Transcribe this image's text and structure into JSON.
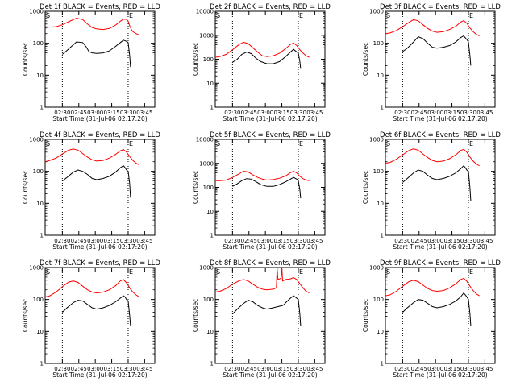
{
  "chart_data": [
    {
      "type": "line",
      "title": "Det 1f BLACK = Events, RED = LLD",
      "xlabel": "Start Time (31-Jul-06 02:17:20)",
      "ylabel": "Counts/sec",
      "x_ticks": [
        "02:30",
        "02:45",
        "03:00",
        "03:15",
        "03:30",
        "03:45"
      ],
      "y_ticks": [
        "1",
        "10",
        "100",
        "1000"
      ],
      "marker_start": "S",
      "marker_end": "E",
      "series": [
        {
          "name": "Events",
          "color": "#000000",
          "x": [
            22,
            28,
            40,
            48,
            52,
            56,
            60,
            66,
            74,
            82,
            90,
            96,
            100,
            104,
            106,
            108,
            109
          ],
          "y": [
            45,
            60,
            110,
            105,
            80,
            55,
            50,
            48,
            50,
            58,
            80,
            105,
            125,
            115,
            105,
            40,
            18
          ]
        },
        {
          "name": "LLD",
          "color": "#ff0000",
          "x": [
            0,
            6,
            14,
            22,
            30,
            40,
            48,
            54,
            60,
            66,
            74,
            82,
            90,
            96,
            100,
            104,
            106,
            108,
            110,
            112,
            116,
            120
          ],
          "y": [
            330,
            320,
            330,
            380,
            470,
            610,
            550,
            400,
            310,
            280,
            270,
            290,
            370,
            490,
            570,
            560,
            490,
            350,
            270,
            230,
            200,
            180
          ]
        }
      ]
    },
    {
      "type": "line",
      "title": "Det 2f BLACK = Events, RED = LLD",
      "xlabel": "Start Time (31-Jul-06 02:17:20)",
      "ylabel": "Counts/sec",
      "x_ticks": [
        "02:30",
        "02:45",
        "03:00",
        "03:15",
        "03:30",
        "03:45"
      ],
      "y_ticks": [
        "1",
        "10",
        "100",
        "1000",
        "10000"
      ],
      "marker_start": "S",
      "marker_end": "E",
      "series": [
        {
          "name": "Events",
          "color": "#000000",
          "x": [
            22,
            28,
            34,
            40,
            46,
            52,
            58,
            66,
            74,
            82,
            90,
            96,
            100,
            104,
            106,
            108,
            109
          ],
          "y": [
            75,
            100,
            160,
            200,
            170,
            110,
            80,
            65,
            65,
            80,
            130,
            200,
            260,
            200,
            180,
            80,
            40
          ]
        },
        {
          "name": "LLD",
          "color": "#ff0000",
          "x": [
            0,
            6,
            14,
            22,
            30,
            36,
            42,
            48,
            54,
            60,
            66,
            74,
            82,
            90,
            96,
            100,
            104,
            108,
            112,
            116,
            120
          ],
          "y": [
            120,
            130,
            160,
            250,
            400,
            510,
            450,
            300,
            200,
            140,
            130,
            140,
            180,
            280,
            420,
            470,
            380,
            250,
            180,
            140,
            120
          ]
        }
      ]
    },
    {
      "type": "line",
      "title": "Det 3f BLACK = Events, RED = LLD",
      "xlabel": "Start Time (31-Jul-06 02:17:20)",
      "ylabel": "Counts/sec",
      "x_ticks": [
        "02:30",
        "02:45",
        "03:00",
        "03:15",
        "03:30",
        "03:45"
      ],
      "y_ticks": [
        "1",
        "10",
        "100",
        "1000"
      ],
      "marker_start": "S",
      "marker_end": "E",
      "series": [
        {
          "name": "Events",
          "color": "#000000",
          "x": [
            22,
            28,
            36,
            42,
            48,
            54,
            60,
            66,
            74,
            82,
            90,
            96,
            100,
            104,
            106,
            108,
            109
          ],
          "y": [
            55,
            70,
            110,
            160,
            140,
            100,
            75,
            70,
            75,
            85,
            110,
            150,
            170,
            130,
            110,
            40,
            20
          ]
        },
        {
          "name": "LLD",
          "color": "#ff0000",
          "x": [
            0,
            6,
            14,
            22,
            30,
            36,
            42,
            48,
            54,
            60,
            66,
            74,
            82,
            90,
            96,
            100,
            104,
            108,
            112,
            116,
            120
          ],
          "y": [
            200,
            210,
            250,
            330,
            450,
            550,
            500,
            380,
            290,
            240,
            220,
            230,
            270,
            340,
            460,
            510,
            420,
            300,
            230,
            190,
            170
          ]
        }
      ]
    },
    {
      "type": "line",
      "title": "Det 4f BLACK = Events, RED = LLD",
      "xlabel": "Start Time (31-Jul-06 02:17:20)",
      "ylabel": "Counts/sec",
      "x_ticks": [
        "02:30",
        "02:45",
        "03:00",
        "03:15",
        "03:30",
        "03:45"
      ],
      "y_ticks": [
        "1",
        "10",
        "100",
        "1000"
      ],
      "marker_start": "S",
      "marker_end": "E",
      "series": [
        {
          "name": "Events",
          "color": "#000000",
          "x": [
            22,
            28,
            36,
            42,
            48,
            54,
            60,
            66,
            74,
            82,
            90,
            96,
            100,
            102,
            104,
            106,
            108,
            109
          ],
          "y": [
            50,
            65,
            95,
            110,
            100,
            80,
            60,
            55,
            60,
            70,
            95,
            130,
            150,
            130,
            110,
            100,
            40,
            15
          ]
        },
        {
          "name": "LLD",
          "color": "#ff0000",
          "x": [
            0,
            6,
            14,
            22,
            30,
            36,
            42,
            48,
            54,
            60,
            66,
            74,
            82,
            90,
            96,
            100,
            104,
            108,
            112,
            116,
            120
          ],
          "y": [
            200,
            220,
            260,
            350,
            460,
            500,
            460,
            360,
            280,
            230,
            210,
            220,
            260,
            340,
            440,
            480,
            400,
            290,
            220,
            180,
            160
          ]
        }
      ]
    },
    {
      "type": "line",
      "title": "Det 5f BLACK = Events, RED = LLD",
      "xlabel": "Start Time (31-Jul-06 02:17:20)",
      "ylabel": "Counts/sec",
      "x_ticks": [
        "02:30",
        "02:45",
        "03:00",
        "03:15",
        "03:30",
        "03:45"
      ],
      "y_ticks": [
        "1",
        "10",
        "100",
        "1000",
        "10000"
      ],
      "marker_start": "S",
      "marker_end": "E",
      "series": [
        {
          "name": "Events",
          "color": "#000000",
          "x": [
            22,
            28,
            34,
            40,
            46,
            52,
            58,
            66,
            74,
            82,
            90,
            96,
            100,
            104,
            106,
            108,
            109
          ],
          "y": [
            110,
            140,
            190,
            230,
            220,
            170,
            130,
            110,
            110,
            130,
            170,
            220,
            260,
            220,
            190,
            80,
            35
          ]
        },
        {
          "name": "LLD",
          "color": "#ff0000",
          "x": [
            0,
            6,
            14,
            22,
            30,
            36,
            42,
            48,
            54,
            60,
            66,
            74,
            82,
            90,
            96,
            100,
            104,
            108,
            112,
            116,
            120
          ],
          "y": [
            190,
            190,
            200,
            260,
            360,
            470,
            440,
            330,
            260,
            220,
            200,
            210,
            240,
            300,
            410,
            470,
            400,
            290,
            230,
            200,
            190
          ]
        }
      ]
    },
    {
      "type": "line",
      "title": "Det 6f BLACK = Events, RED = LLD",
      "xlabel": "Start Time (31-Jul-06 02:17:20)",
      "ylabel": "Counts/sec",
      "x_ticks": [
        "02:30",
        "02:45",
        "03:00",
        "03:15",
        "03:30",
        "03:45"
      ],
      "y_ticks": [
        "1",
        "10",
        "100",
        "1000"
      ],
      "marker_start": "S",
      "marker_end": "E",
      "series": [
        {
          "name": "Events",
          "color": "#000000",
          "x": [
            22,
            28,
            36,
            42,
            48,
            54,
            60,
            66,
            74,
            82,
            90,
            96,
            100,
            102,
            104,
            106,
            108,
            109
          ],
          "y": [
            45,
            60,
            90,
            110,
            100,
            75,
            60,
            55,
            60,
            70,
            90,
            120,
            150,
            130,
            110,
            100,
            30,
            12
          ]
        },
        {
          "name": "LLD",
          "color": "#ff0000",
          "x": [
            0,
            6,
            14,
            22,
            30,
            36,
            42,
            48,
            54,
            60,
            66,
            74,
            82,
            90,
            96,
            100,
            104,
            108,
            112,
            116,
            120
          ],
          "y": [
            180,
            190,
            240,
            330,
            450,
            510,
            460,
            350,
            270,
            220,
            200,
            210,
            250,
            330,
            450,
            490,
            400,
            280,
            210,
            170,
            150
          ]
        }
      ]
    },
    {
      "type": "line",
      "title": "Det 7f BLACK = Events, RED = LLD",
      "xlabel": "Start Time (31-Jul-06 02:17:20)",
      "ylabel": "Counts/sec",
      "x_ticks": [
        "02:30",
        "02:45",
        "03:00",
        "03:15",
        "03:30",
        "03:45"
      ],
      "y_ticks": [
        "1",
        "10",
        "100",
        "1000"
      ],
      "marker_start": "S",
      "marker_end": "E",
      "series": [
        {
          "name": "Events",
          "color": "#000000",
          "x": [
            22,
            28,
            36,
            42,
            48,
            54,
            60,
            66,
            74,
            82,
            90,
            96,
            100,
            102,
            104,
            106,
            108,
            109
          ],
          "y": [
            40,
            55,
            80,
            95,
            90,
            70,
            55,
            50,
            55,
            65,
            85,
            110,
            130,
            120,
            100,
            90,
            30,
            15
          ]
        },
        {
          "name": "LLD",
          "color": "#ff0000",
          "x": [
            0,
            6,
            14,
            22,
            30,
            36,
            42,
            48,
            54,
            60,
            66,
            74,
            82,
            90,
            96,
            100,
            104,
            108,
            112,
            116,
            120
          ],
          "y": [
            120,
            130,
            170,
            250,
            350,
            380,
            340,
            260,
            200,
            170,
            160,
            170,
            200,
            270,
            380,
            420,
            330,
            230,
            170,
            140,
            120
          ]
        }
      ]
    },
    {
      "type": "line",
      "title": "Det 8f BLACK = Events, RED = LLD",
      "xlabel": "Start Time (31-Jul-06 02:17:20)",
      "ylabel": "Counts/sec",
      "x_ticks": [
        "02:30",
        "02:45",
        "03:00",
        "03:15",
        "03:30",
        "03:45"
      ],
      "y_ticks": [
        "1",
        "10",
        "100",
        "1000"
      ],
      "marker_start": "S",
      "marker_end": "E",
      "series": [
        {
          "name": "Events",
          "color": "#000000",
          "x": [
            22,
            28,
            36,
            42,
            48,
            54,
            60,
            66,
            74,
            80,
            86,
            88,
            90,
            96,
            100,
            104,
            106,
            108,
            109
          ],
          "y": [
            35,
            50,
            75,
            95,
            85,
            65,
            55,
            50,
            55,
            60,
            65,
            70,
            80,
            110,
            130,
            110,
            100,
            35,
            15
          ]
        },
        {
          "name": "LLD",
          "color": "#ff0000",
          "x": [
            0,
            6,
            14,
            22,
            30,
            36,
            42,
            48,
            54,
            60,
            66,
            74,
            78,
            79,
            80,
            84,
            85,
            86,
            90,
            96,
            100,
            104,
            108,
            112,
            116,
            120
          ],
          "y": [
            170,
            180,
            220,
            300,
            380,
            420,
            380,
            300,
            240,
            210,
            200,
            210,
            230,
            1000,
            420,
            460,
            1000,
            380,
            420,
            440,
            480,
            420,
            310,
            230,
            180,
            160
          ]
        }
      ]
    },
    {
      "type": "line",
      "title": "Det 9f BLACK = Events, RED = LLD",
      "xlabel": "Start Time (31-Jul-06 02:17:20)",
      "ylabel": "Counts/sec",
      "x_ticks": [
        "02:30",
        "02:45",
        "03:00",
        "03:15",
        "03:30",
        "03:45"
      ],
      "y_ticks": [
        "1",
        "10",
        "100",
        "1000"
      ],
      "marker_start": "S",
      "marker_end": "E",
      "series": [
        {
          "name": "Events",
          "color": "#000000",
          "x": [
            22,
            28,
            36,
            42,
            48,
            54,
            60,
            66,
            74,
            82,
            90,
            96,
            100,
            102,
            104,
            106,
            108,
            109
          ],
          "y": [
            40,
            55,
            80,
            100,
            95,
            75,
            60,
            55,
            60,
            70,
            90,
            120,
            160,
            140,
            120,
            100,
            35,
            15
          ]
        },
        {
          "name": "LLD",
          "color": "#ff0000",
          "x": [
            0,
            6,
            14,
            22,
            30,
            36,
            42,
            48,
            54,
            60,
            66,
            74,
            82,
            90,
            96,
            100,
            104,
            108,
            112,
            116,
            120
          ],
          "y": [
            130,
            140,
            180,
            260,
            360,
            400,
            360,
            280,
            220,
            190,
            180,
            190,
            230,
            310,
            420,
            460,
            370,
            260,
            190,
            150,
            130
          ]
        }
      ]
    }
  ]
}
